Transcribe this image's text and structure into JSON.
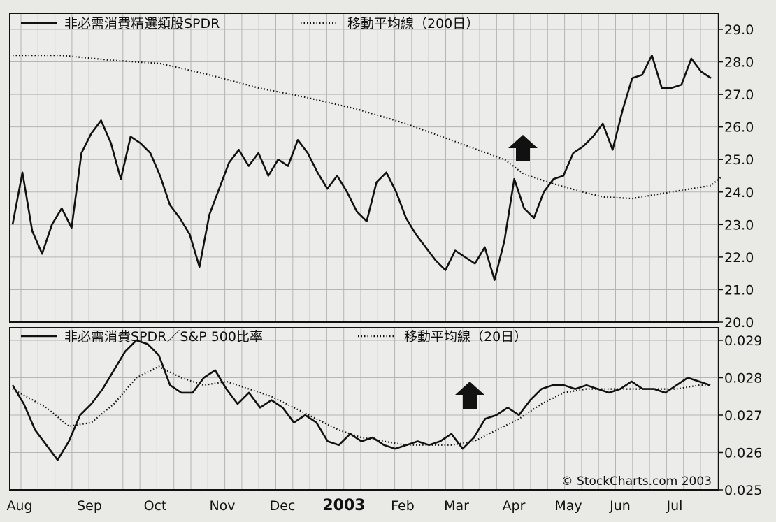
{
  "chart_data": [
    {
      "type": "line",
      "panel": "top",
      "ylim": [
        20.0,
        29.0
      ],
      "yticks": [
        "29.0",
        "28.0",
        "27.0",
        "26.0",
        "25.0",
        "24.0",
        "23.0",
        "22.0",
        "21.0",
        "20.0"
      ],
      "grid": true,
      "legend_placement": "top-left",
      "series": [
        {
          "name": "非必需消費精選類股SPDR",
          "style": "solid",
          "points": [
            [
              0,
              23.0
            ],
            [
              1,
              24.6
            ],
            [
              2,
              22.8
            ],
            [
              3,
              22.1
            ],
            [
              4,
              23.0
            ],
            [
              5,
              23.5
            ],
            [
              6,
              22.9
            ],
            [
              7,
              25.2
            ],
            [
              8,
              25.8
            ],
            [
              9,
              26.2
            ],
            [
              10,
              25.5
            ],
            [
              11,
              24.4
            ],
            [
              12,
              25.7
            ],
            [
              13,
              25.5
            ],
            [
              14,
              25.2
            ],
            [
              15,
              24.5
            ],
            [
              16,
              23.6
            ],
            [
              17,
              23.2
            ],
            [
              18,
              22.7
            ],
            [
              19,
              21.7
            ],
            [
              20,
              23.3
            ],
            [
              21,
              24.1
            ],
            [
              22,
              24.9
            ],
            [
              23,
              25.3
            ],
            [
              24,
              24.8
            ],
            [
              25,
              25.2
            ],
            [
              26,
              24.5
            ],
            [
              27,
              25.0
            ],
            [
              28,
              24.8
            ],
            [
              29,
              25.6
            ],
            [
              30,
              25.2
            ],
            [
              31,
              24.6
            ],
            [
              32,
              24.1
            ],
            [
              33,
              24.5
            ],
            [
              34,
              24.0
            ],
            [
              35,
              23.4
            ],
            [
              36,
              23.1
            ],
            [
              37,
              24.3
            ],
            [
              38,
              24.6
            ],
            [
              39,
              24.0
            ],
            [
              40,
              23.2
            ],
            [
              41,
              22.7
            ],
            [
              42,
              22.3
            ],
            [
              43,
              21.9
            ],
            [
              44,
              21.6
            ],
            [
              45,
              22.2
            ],
            [
              46,
              22.0
            ],
            [
              47,
              21.8
            ],
            [
              48,
              22.3
            ],
            [
              49,
              21.3
            ],
            [
              50,
              22.5
            ],
            [
              51,
              24.4
            ],
            [
              52,
              23.5
            ],
            [
              53,
              23.2
            ],
            [
              54,
              24.0
            ],
            [
              55,
              24.4
            ],
            [
              56,
              24.5
            ],
            [
              57,
              25.2
            ],
            [
              58,
              25.4
            ],
            [
              59,
              25.7
            ],
            [
              60,
              26.1
            ],
            [
              61,
              25.3
            ],
            [
              62,
              26.5
            ],
            [
              63,
              27.5
            ],
            [
              64,
              27.6
            ],
            [
              65,
              28.2
            ],
            [
              66,
              27.2
            ],
            [
              67,
              27.2
            ],
            [
              68,
              27.3
            ],
            [
              69,
              28.1
            ],
            [
              70,
              27.7
            ],
            [
              71,
              27.5
            ]
          ]
        },
        {
          "name": "移動平均線（200日）",
          "style": "dotted",
          "points": [
            [
              0,
              28.2
            ],
            [
              5,
              28.2
            ],
            [
              10,
              28.05
            ],
            [
              15,
              27.95
            ],
            [
              20,
              27.6
            ],
            [
              25,
              27.2
            ],
            [
              30,
              26.9
            ],
            [
              35,
              26.55
            ],
            [
              40,
              26.1
            ],
            [
              45,
              25.55
            ],
            [
              50,
              25.0
            ],
            [
              52,
              24.55
            ],
            [
              55,
              24.25
            ],
            [
              58,
              24.0
            ],
            [
              60,
              23.85
            ],
            [
              63,
              23.8
            ],
            [
              65,
              23.9
            ],
            [
              68,
              24.05
            ],
            [
              71,
              24.2
            ],
            [
              72,
              24.45
            ]
          ]
        }
      ]
    },
    {
      "type": "line",
      "panel": "bottom",
      "ylim": [
        0.025,
        0.029
      ],
      "yticks": [
        "0.029",
        "0.028",
        "0.027",
        "0.026",
        "0.025"
      ],
      "grid": true,
      "legend_placement": "top-left",
      "series": [
        {
          "name": "非必需消費SPDR／S&P 500比率",
          "style": "solid",
          "points": [
            [
              0,
              0.0278
            ],
            [
              1,
              0.0273
            ],
            [
              2,
              0.0266
            ],
            [
              3,
              0.0262
            ],
            [
              4,
              0.0258
            ],
            [
              5,
              0.0263
            ],
            [
              6,
              0.027
            ],
            [
              7,
              0.0273
            ],
            [
              8,
              0.0277
            ],
            [
              9,
              0.0282
            ],
            [
              10,
              0.0287
            ],
            [
              11,
              0.029
            ],
            [
              12,
              0.0289
            ],
            [
              13,
              0.0286
            ],
            [
              14,
              0.0278
            ],
            [
              15,
              0.0276
            ],
            [
              16,
              0.0276
            ],
            [
              17,
              0.028
            ],
            [
              18,
              0.0282
            ],
            [
              19,
              0.0277
            ],
            [
              20,
              0.0273
            ],
            [
              21,
              0.0276
            ],
            [
              22,
              0.0272
            ],
            [
              23,
              0.0274
            ],
            [
              24,
              0.0272
            ],
            [
              25,
              0.0268
            ],
            [
              26,
              0.027
            ],
            [
              27,
              0.0268
            ],
            [
              28,
              0.0263
            ],
            [
              29,
              0.0262
            ],
            [
              30,
              0.0265
            ],
            [
              31,
              0.0263
            ],
            [
              32,
              0.0264
            ],
            [
              33,
              0.0262
            ],
            [
              34,
              0.0261
            ],
            [
              35,
              0.0262
            ],
            [
              36,
              0.0263
            ],
            [
              37,
              0.0262
            ],
            [
              38,
              0.0263
            ],
            [
              39,
              0.0265
            ],
            [
              40,
              0.0261
            ],
            [
              41,
              0.0264
            ],
            [
              42,
              0.0269
            ],
            [
              43,
              0.027
            ],
            [
              44,
              0.0272
            ],
            [
              45,
              0.027
            ],
            [
              46,
              0.0274
            ],
            [
              47,
              0.0277
            ],
            [
              48,
              0.0278
            ],
            [
              49,
              0.0278
            ],
            [
              50,
              0.0277
            ],
            [
              51,
              0.0278
            ],
            [
              52,
              0.0277
            ],
            [
              53,
              0.0276
            ],
            [
              54,
              0.0277
            ],
            [
              55,
              0.0279
            ],
            [
              56,
              0.0277
            ],
            [
              57,
              0.0277
            ],
            [
              58,
              0.0276
            ],
            [
              59,
              0.0278
            ],
            [
              60,
              0.028
            ],
            [
              61,
              0.0279
            ],
            [
              62,
              0.0278
            ]
          ]
        },
        {
          "name": "移動平均線（20日）",
          "style": "dotted",
          "points": [
            [
              0,
              0.0277
            ],
            [
              3,
              0.0272
            ],
            [
              5,
              0.0267
            ],
            [
              7,
              0.0268
            ],
            [
              9,
              0.0273
            ],
            [
              11,
              0.028
            ],
            [
              13,
              0.0283
            ],
            [
              15,
              0.028
            ],
            [
              17,
              0.0278
            ],
            [
              19,
              0.0279
            ],
            [
              21,
              0.0277
            ],
            [
              23,
              0.0275
            ],
            [
              25,
              0.0272
            ],
            [
              27,
              0.0269
            ],
            [
              29,
              0.0266
            ],
            [
              31,
              0.0264
            ],
            [
              33,
              0.0263
            ],
            [
              35,
              0.0262
            ],
            [
              37,
              0.0262
            ],
            [
              39,
              0.0262
            ],
            [
              41,
              0.0263
            ],
            [
              43,
              0.0266
            ],
            [
              45,
              0.0269
            ],
            [
              47,
              0.0273
            ],
            [
              49,
              0.0276
            ],
            [
              51,
              0.0277
            ],
            [
              53,
              0.0277
            ],
            [
              55,
              0.0277
            ],
            [
              57,
              0.0277
            ],
            [
              59,
              0.0277
            ],
            [
              61,
              0.0278
            ],
            [
              62,
              0.0278
            ]
          ]
        }
      ]
    }
  ],
  "x_axis": {
    "labels": [
      "Aug",
      "Sep",
      "Oct",
      "Nov",
      "Dec",
      "2003",
      "Feb",
      "Mar",
      "Apr",
      "May",
      "Jun",
      "Jul"
    ],
    "emphasized_label": "2003"
  },
  "credit": "© StockCharts.com 2003",
  "colors": {
    "line": "#111111",
    "grid": "#b5b5b5",
    "background": "#ececea",
    "arrow": "#111111"
  },
  "annotations": [
    {
      "panel": "top",
      "icon": "up-arrow-icon",
      "x_label": "Apr"
    },
    {
      "panel": "bottom",
      "icon": "up-arrow-icon",
      "x_label": "Mar"
    }
  ]
}
